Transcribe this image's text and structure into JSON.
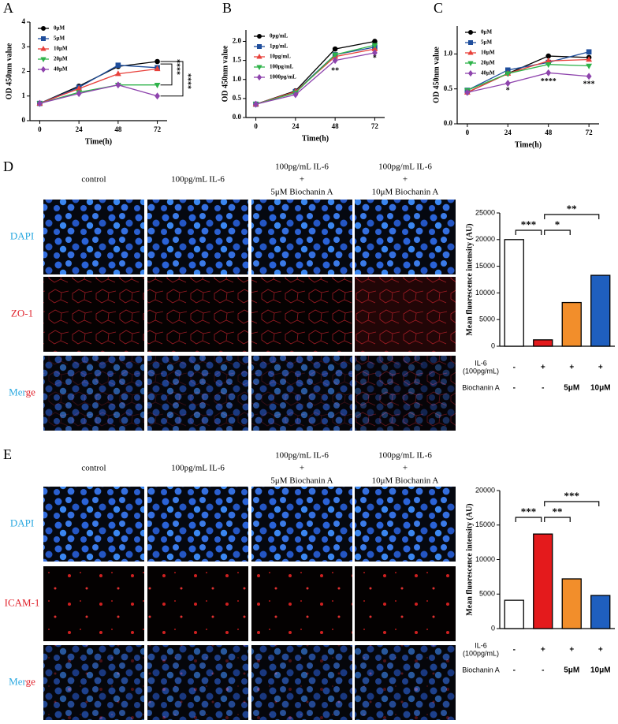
{
  "chart_data": [
    {
      "type": "line",
      "panel": "A",
      "xlabel": "Time(h)",
      "ylabel": "OD 450nm value",
      "legend": "upper left",
      "x": [
        0,
        24,
        48,
        72
      ],
      "xlim": [
        -6,
        78
      ],
      "xticks": [
        0,
        24,
        48,
        72
      ],
      "ylim": [
        0,
        4
      ],
      "yticks": [
        0,
        1,
        2,
        3,
        4
      ],
      "series": [
        {
          "name": "0μM",
          "color": "#000000",
          "marker": "circle",
          "values": [
            0.7,
            1.4,
            2.2,
            2.4
          ]
        },
        {
          "name": "5μM",
          "color": "#1f4e9c",
          "marker": "square",
          "values": [
            0.7,
            1.35,
            2.25,
            2.15
          ]
        },
        {
          "name": "10μM",
          "color": "#e8403a",
          "marker": "triangle-up",
          "values": [
            0.7,
            1.3,
            1.9,
            2.1
          ]
        },
        {
          "name": "20μM",
          "color": "#2fb34a",
          "marker": "triangle-down",
          "values": [
            0.7,
            1.15,
            1.45,
            1.45
          ]
        },
        {
          "name": "40μM",
          "color": "#8e44ad",
          "marker": "diamond",
          "values": [
            0.7,
            1.1,
            1.45,
            1.0
          ]
        }
      ],
      "annotations": [
        "****",
        "****"
      ]
    },
    {
      "type": "line",
      "panel": "B",
      "xlabel": "Time(h)",
      "ylabel": "OD 450nm value",
      "legend": "upper left",
      "x": [
        0,
        24,
        48,
        72
      ],
      "xlim": [
        -6,
        78
      ],
      "xticks": [
        0,
        24,
        48,
        72
      ],
      "ylim": [
        0,
        2.3
      ],
      "yticks": [
        {
          "value": 0,
          "label": "0.0"
        },
        0.5,
        {
          "value": 1,
          "label": "1.0"
        },
        1.5,
        {
          "value": 2,
          "label": "2.0"
        }
      ],
      "series": [
        {
          "name": "0pg/mL",
          "color": "#000000",
          "marker": "circle",
          "values": [
            0.35,
            0.7,
            1.8,
            2.0
          ]
        },
        {
          "name": "1pg/mL",
          "color": "#1f4e9c",
          "marker": "square",
          "values": [
            0.35,
            0.68,
            1.65,
            1.85
          ]
        },
        {
          "name": "10pg/mL",
          "color": "#e8403a",
          "marker": "triangle-up",
          "values": [
            0.35,
            0.68,
            1.6,
            1.8
          ]
        },
        {
          "name": "100pg/mL",
          "color": "#2fb34a",
          "marker": "triangle-down",
          "values": [
            0.35,
            0.65,
            1.65,
            1.9
          ]
        },
        {
          "name": "1000pg/mL",
          "color": "#8e44ad",
          "marker": "diamond",
          "values": [
            0.35,
            0.6,
            1.5,
            1.7
          ]
        }
      ],
      "annotations": [
        "**",
        "*"
      ]
    },
    {
      "type": "line",
      "panel": "C",
      "xlabel": "Time(h)",
      "ylabel": "OD 450nm value",
      "legend": "upper left",
      "x": [
        0,
        24,
        48,
        72
      ],
      "xlim": [
        -6,
        78
      ],
      "xticks": [
        0,
        24,
        48,
        72
      ],
      "ylim": [
        0,
        1.4
      ],
      "yticks": [
        {
          "value": 0,
          "label": "0.0"
        },
        0.5,
        {
          "value": 1,
          "label": "1.0"
        }
      ],
      "series": [
        {
          "name": "0μM",
          "color": "#000000",
          "marker": "circle",
          "values": [
            0.45,
            0.72,
            0.97,
            0.95
          ]
        },
        {
          "name": "5μM",
          "color": "#1f4e9c",
          "marker": "square",
          "values": [
            0.48,
            0.77,
            0.88,
            1.03
          ]
        },
        {
          "name": "10μM",
          "color": "#e8403a",
          "marker": "triangle-up",
          "values": [
            0.45,
            0.72,
            0.9,
            0.92
          ]
        },
        {
          "name": "20μM",
          "color": "#2fb34a",
          "marker": "triangle-down",
          "values": [
            0.48,
            0.72,
            0.85,
            0.83
          ]
        },
        {
          "name": "40μM",
          "color": "#8e44ad",
          "marker": "diamond",
          "values": [
            0.45,
            0.58,
            0.73,
            0.68
          ]
        }
      ],
      "annotations": [
        "*",
        "****",
        "***"
      ]
    },
    {
      "type": "bar",
      "ylabel": "Mean fluorescence intensity (AU)",
      "ylim": [
        0,
        25000
      ],
      "yticks": [
        0,
        5000,
        10000,
        15000,
        20000,
        25000
      ],
      "values": [
        20000,
        1200,
        8200,
        13300
      ],
      "colors": [
        "#ffffff",
        "#e41a1c",
        "#f28e2b",
        "#1f5fbf"
      ],
      "rows": [
        {
          "label": [
            "IL-6",
            "(100pg/mL)"
          ],
          "values": [
            "-",
            "+",
            "+",
            "+"
          ]
        },
        {
          "label": [
            "Biochanin A"
          ],
          "values": [
            "-",
            "-",
            "5μM",
            "10μM"
          ]
        }
      ],
      "annotations": [
        "***",
        "*",
        "**"
      ]
    },
    {
      "type": "bar",
      "ylabel": "Mean fluorescence intensity (AU)",
      "ylim": [
        0,
        20000
      ],
      "yticks": [
        0,
        5000,
        10000,
        15000,
        20000
      ],
      "values": [
        4100,
        13700,
        7200,
        4800
      ],
      "colors": [
        "#ffffff",
        "#e41a1c",
        "#f28e2b",
        "#1f5fbf"
      ],
      "rows": [
        {
          "label": [
            "IL-6",
            "(100pg/mL)"
          ],
          "values": [
            "-",
            "+",
            "+",
            "+"
          ]
        },
        {
          "label": [
            "Biochanin A"
          ],
          "values": [
            "-",
            "-",
            "5μM",
            "10μM"
          ]
        }
      ],
      "annotations": [
        "***",
        "**",
        "***"
      ]
    }
  ],
  "figure": {
    "D": {
      "panel": "D",
      "columns": [
        [
          "control"
        ],
        [
          "100pg/mL IL-6"
        ],
        [
          "100pg/mL IL-6",
          "+",
          "5μM Biochanin A"
        ],
        [
          "100pg/mL IL-6",
          "+",
          "10μM Biochanin A"
        ]
      ],
      "rows": [
        "DAPI",
        "ZO-1",
        "Merge"
      ]
    },
    "E": {
      "panel": "E",
      "columns": [
        [
          "control"
        ],
        [
          "100pg/mL IL-6"
        ],
        [
          "100pg/mL IL-6",
          "+",
          "5μM Biochanin A"
        ],
        [
          "100pg/mL IL-6",
          "+",
          "10μM Biochanin A"
        ]
      ],
      "rows": [
        "DAPI",
        "ICAM-1",
        "Merge"
      ]
    }
  }
}
